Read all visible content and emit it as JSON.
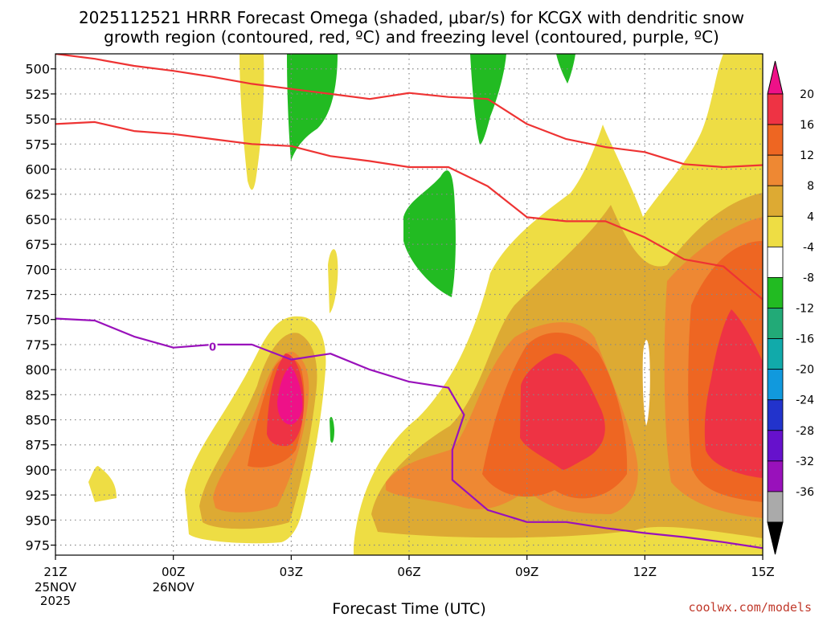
{
  "title": {
    "line1": "2025112521 HRRR Forecast Omega (shaded, μbar/s) for KCGX with dendritic snow",
    "line2": "growth region (contoured, red, ºC) and freezing level (contoured, purple, ºC)"
  },
  "xlabel": "Forecast Time (UTC)",
  "credit": "coolwx.com/models",
  "colors": {
    "dgz_contour": "#ee3333",
    "freezing_contour": "#9911bb",
    "terrain": "#a0522d",
    "grid": "#888888"
  },
  "chart_data": {
    "type": "heatmap",
    "y_axis": {
      "label": "",
      "unit": "hPa",
      "range": [
        485,
        985
      ],
      "inverted": true,
      "ticks": [
        "500",
        "525",
        "550",
        "575",
        "600",
        "625",
        "650",
        "675",
        "700",
        "725",
        "750",
        "775",
        "800",
        "825",
        "850",
        "875",
        "900",
        "925",
        "950",
        "975"
      ]
    },
    "x_axis": {
      "range_hours": [
        0,
        18
      ],
      "ticks": [
        {
          "hour": 0,
          "label": "21Z",
          "sub": [
            "25NOV",
            "2025"
          ]
        },
        {
          "hour": 3,
          "label": "00Z",
          "sub": [
            "26NOV"
          ]
        },
        {
          "hour": 6,
          "label": "03Z",
          "sub": []
        },
        {
          "hour": 9,
          "label": "06Z",
          "sub": []
        },
        {
          "hour": 12,
          "label": "09Z",
          "sub": []
        },
        {
          "hour": 15,
          "label": "12Z",
          "sub": []
        },
        {
          "hour": 18,
          "label": "15Z",
          "sub": []
        }
      ]
    },
    "grid": true,
    "colorbar": {
      "levels": [
        -36,
        -32,
        -28,
        -24,
        -20,
        -16,
        -12,
        -8,
        -4,
        4,
        8,
        12,
        16,
        20
      ],
      "labels": [
        "20",
        "16",
        "12",
        "8",
        "4",
        "-4",
        "-8",
        "-12",
        "-16",
        "-20",
        "-24",
        "-28",
        "-32",
        "-36"
      ],
      "colors_top_to_bottom": [
        "#ee1188",
        "#ee3344",
        "#ee6622",
        "#ee8833",
        "#ddaa33",
        "#eedd44",
        "#ffffff",
        "#22bb22",
        "#22aa77",
        "#11aaaa",
        "#1199dd",
        "#2233cc",
        "#6611cc",
        "#9911bb",
        "#aaaaaa",
        "#000000"
      ]
    },
    "omega_regions": [
      {
        "name": "ascent-max-03Z",
        "value": 20,
        "center_hour": 6.0,
        "center_hpa": 795
      },
      {
        "name": "ascent-max-10Z",
        "value": 16,
        "center_hour": 13.0,
        "center_hpa": 815
      },
      {
        "name": "ascent-max-14Z",
        "value": 16,
        "center_hour": 17.5,
        "center_hpa": 810
      },
      {
        "name": "descent-03Z",
        "value": -4,
        "center_hour": 6.0,
        "center_hpa": 520
      },
      {
        "name": "descent-07Z",
        "value": -4,
        "center_hour": 10.5,
        "center_hpa": 630
      }
    ],
    "contours": [
      {
        "type": "dgz_upper",
        "label_text": "",
        "points": [
          [
            0,
            485
          ],
          [
            1,
            490
          ],
          [
            2,
            497
          ],
          [
            3,
            502
          ],
          [
            4,
            508
          ],
          [
            5,
            515
          ],
          [
            6,
            520
          ],
          [
            7,
            525
          ],
          [
            8,
            530
          ],
          [
            9,
            524
          ],
          [
            10,
            528
          ],
          [
            11,
            530
          ],
          [
            12,
            555
          ],
          [
            13,
            570
          ],
          [
            14,
            578
          ],
          [
            15,
            583
          ],
          [
            16,
            595
          ],
          [
            17,
            598
          ],
          [
            18,
            596
          ]
        ]
      },
      {
        "type": "dgz_lower",
        "label_text": "",
        "points": [
          [
            0,
            555
          ],
          [
            1,
            553
          ],
          [
            2,
            562
          ],
          [
            3,
            565
          ],
          [
            4,
            570
          ],
          [
            5,
            575
          ],
          [
            6,
            577
          ],
          [
            7,
            587
          ],
          [
            8,
            592
          ],
          [
            9,
            598
          ],
          [
            10,
            598
          ],
          [
            11,
            617
          ],
          [
            12,
            648
          ],
          [
            13,
            652
          ],
          [
            14,
            652
          ],
          [
            15,
            668
          ],
          [
            16,
            690
          ],
          [
            17,
            697
          ],
          [
            18,
            730
          ]
        ]
      },
      {
        "type": "freezing_level",
        "label_text": "0",
        "points": [
          [
            0,
            749
          ],
          [
            1,
            751
          ],
          [
            2,
            767
          ],
          [
            3,
            778
          ],
          [
            4,
            775
          ],
          [
            5,
            775
          ],
          [
            6,
            790
          ],
          [
            7,
            784
          ],
          [
            8,
            800
          ],
          [
            9,
            812
          ],
          [
            10,
            818
          ],
          [
            10.4,
            845
          ],
          [
            10.1,
            880
          ],
          [
            10.1,
            910
          ],
          [
            11,
            940
          ],
          [
            12,
            952
          ],
          [
            13,
            952
          ],
          [
            14,
            958
          ],
          [
            15,
            963
          ],
          [
            16,
            967
          ],
          [
            17,
            972
          ],
          [
            18,
            978
          ]
        ]
      }
    ],
    "terrain_hpa": 985
  }
}
